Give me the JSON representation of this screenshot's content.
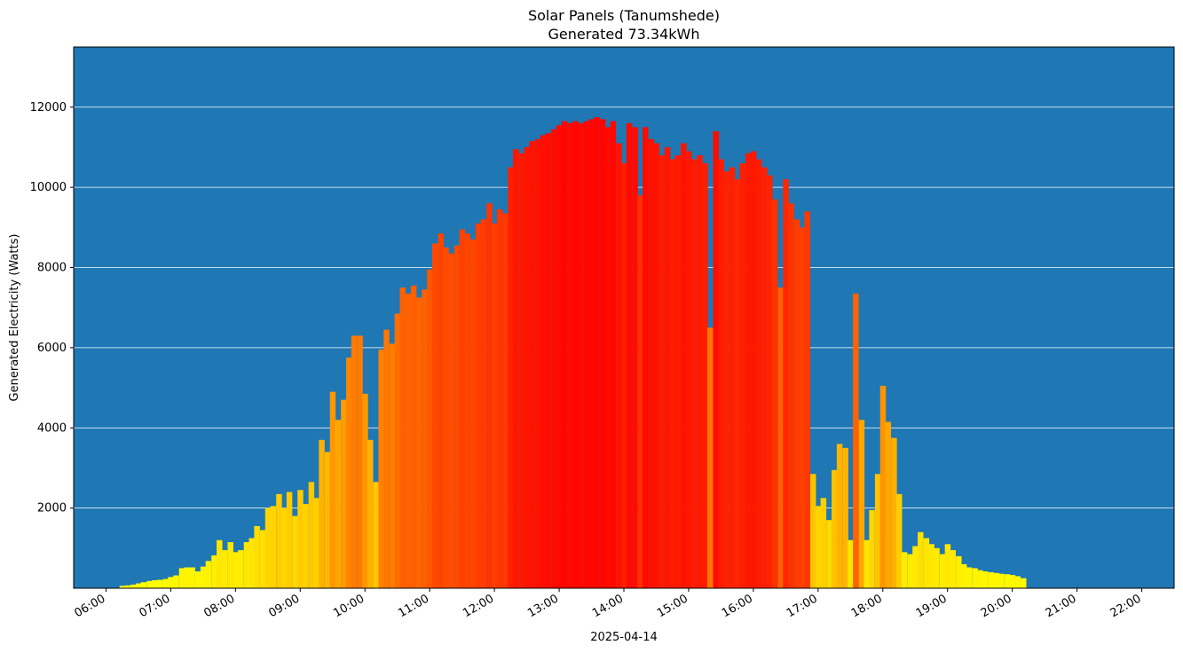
{
  "chart_data": {
    "type": "bar",
    "title": "Solar Panels (Tanumshede)",
    "subtitle": "Generated 73.34kWh",
    "xlabel": "2025-04-14",
    "ylabel": "Generated Electricity (Watts)",
    "background_color": "#1f77b4",
    "grid_color": "#ffffff",
    "grid": "horizontal",
    "xlim_hours": [
      5.5,
      22.5
    ],
    "ylim": [
      0,
      13500
    ],
    "y_ticks": [
      2000,
      4000,
      6000,
      8000,
      10000,
      12000
    ],
    "x_tick_hours": [
      6,
      7,
      8,
      9,
      10,
      11,
      12,
      13,
      14,
      15,
      16,
      17,
      18,
      19,
      20,
      21,
      22
    ],
    "x_tick_labels": [
      "06:00",
      "07:00",
      "08:00",
      "09:00",
      "10:00",
      "11:00",
      "12:00",
      "13:00",
      "14:00",
      "15:00",
      "16:00",
      "17:00",
      "18:00",
      "19:00",
      "20:00",
      "21:00",
      "22:00"
    ],
    "color_scale": {
      "low": "#ffff00",
      "mid": "#ff8000",
      "high": "#ff0000",
      "max_watts": 12000
    },
    "bar_width_hours": 0.0833,
    "series": [
      {
        "name": "Generated Electricity (Watts)",
        "points": [
          [
            6.25,
            60
          ],
          [
            6.33,
            70
          ],
          [
            6.42,
            90
          ],
          [
            6.5,
            120
          ],
          [
            6.58,
            150
          ],
          [
            6.67,
            180
          ],
          [
            6.75,
            200
          ],
          [
            6.83,
            210
          ],
          [
            6.92,
            230
          ],
          [
            7.0,
            280
          ],
          [
            7.08,
            320
          ],
          [
            7.17,
            500
          ],
          [
            7.25,
            520
          ],
          [
            7.33,
            520
          ],
          [
            7.42,
            420
          ],
          [
            7.5,
            540
          ],
          [
            7.58,
            680
          ],
          [
            7.67,
            820
          ],
          [
            7.75,
            1200
          ],
          [
            7.83,
            950
          ],
          [
            7.92,
            1150
          ],
          [
            8.0,
            900
          ],
          [
            8.08,
            950
          ],
          [
            8.17,
            1150
          ],
          [
            8.25,
            1250
          ],
          [
            8.33,
            1550
          ],
          [
            8.42,
            1450
          ],
          [
            8.5,
            2000
          ],
          [
            8.58,
            2050
          ],
          [
            8.67,
            2350
          ],
          [
            8.75,
            2000
          ],
          [
            8.83,
            2400
          ],
          [
            8.92,
            1800
          ],
          [
            9.0,
            2450
          ],
          [
            9.08,
            2100
          ],
          [
            9.17,
            2650
          ],
          [
            9.25,
            2250
          ],
          [
            9.33,
            3700
          ],
          [
            9.42,
            3400
          ],
          [
            9.5,
            4900
          ],
          [
            9.58,
            4200
          ],
          [
            9.67,
            4700
          ],
          [
            9.75,
            5750
          ],
          [
            9.83,
            6300
          ],
          [
            9.92,
            6300
          ],
          [
            10.0,
            4850
          ],
          [
            10.08,
            3700
          ],
          [
            10.17,
            2650
          ],
          [
            10.25,
            5950
          ],
          [
            10.33,
            6450
          ],
          [
            10.42,
            6100
          ],
          [
            10.5,
            6850
          ],
          [
            10.58,
            7500
          ],
          [
            10.67,
            7350
          ],
          [
            10.75,
            7550
          ],
          [
            10.83,
            7250
          ],
          [
            10.92,
            7450
          ],
          [
            11.0,
            7950
          ],
          [
            11.08,
            8600
          ],
          [
            11.17,
            8850
          ],
          [
            11.25,
            8500
          ],
          [
            11.33,
            8350
          ],
          [
            11.42,
            8550
          ],
          [
            11.5,
            8950
          ],
          [
            11.58,
            8850
          ],
          [
            11.67,
            8700
          ],
          [
            11.75,
            9100
          ],
          [
            11.83,
            9200
          ],
          [
            11.92,
            9600
          ],
          [
            12.0,
            9100
          ],
          [
            12.08,
            9450
          ],
          [
            12.17,
            9350
          ],
          [
            12.25,
            10500
          ],
          [
            12.33,
            10950
          ],
          [
            12.42,
            10850
          ],
          [
            12.5,
            11000
          ],
          [
            12.58,
            11150
          ],
          [
            12.67,
            11200
          ],
          [
            12.75,
            11300
          ],
          [
            12.83,
            11350
          ],
          [
            12.92,
            11450
          ],
          [
            13.0,
            11550
          ],
          [
            13.08,
            11650
          ],
          [
            13.17,
            11600
          ],
          [
            13.25,
            11650
          ],
          [
            13.33,
            11600
          ],
          [
            13.42,
            11650
          ],
          [
            13.5,
            11700
          ],
          [
            13.58,
            11750
          ],
          [
            13.67,
            11700
          ],
          [
            13.75,
            11500
          ],
          [
            13.83,
            11650
          ],
          [
            13.92,
            11100
          ],
          [
            14.0,
            10600
          ],
          [
            14.08,
            11600
          ],
          [
            14.17,
            11500
          ],
          [
            14.25,
            9800
          ],
          [
            14.33,
            11500
          ],
          [
            14.42,
            11200
          ],
          [
            14.5,
            11100
          ],
          [
            14.58,
            10800
          ],
          [
            14.67,
            11000
          ],
          [
            14.75,
            10700
          ],
          [
            14.83,
            10800
          ],
          [
            14.92,
            11100
          ],
          [
            15.0,
            10900
          ],
          [
            15.08,
            10700
          ],
          [
            15.17,
            10800
          ],
          [
            15.25,
            10600
          ],
          [
            15.33,
            6500
          ],
          [
            15.42,
            11400
          ],
          [
            15.5,
            10700
          ],
          [
            15.58,
            10400
          ],
          [
            15.67,
            10500
          ],
          [
            15.75,
            10200
          ],
          [
            15.83,
            10600
          ],
          [
            15.92,
            10850
          ],
          [
            16.0,
            10900
          ],
          [
            16.08,
            10700
          ],
          [
            16.17,
            10500
          ],
          [
            16.25,
            10300
          ],
          [
            16.33,
            9700
          ],
          [
            16.42,
            7500
          ],
          [
            16.5,
            10200
          ],
          [
            16.58,
            9600
          ],
          [
            16.67,
            9200
          ],
          [
            16.75,
            9000
          ],
          [
            16.83,
            9400
          ],
          [
            16.92,
            2850
          ],
          [
            17.0,
            2050
          ],
          [
            17.08,
            2250
          ],
          [
            17.17,
            1700
          ],
          [
            17.25,
            2950
          ],
          [
            17.33,
            3600
          ],
          [
            17.42,
            3500
          ],
          [
            17.5,
            1200
          ],
          [
            17.58,
            7350
          ],
          [
            17.67,
            4200
          ],
          [
            17.75,
            1200
          ],
          [
            17.83,
            1950
          ],
          [
            17.92,
            2850
          ],
          [
            18.0,
            5050
          ],
          [
            18.08,
            4150
          ],
          [
            18.17,
            3750
          ],
          [
            18.25,
            2350
          ],
          [
            18.33,
            900
          ],
          [
            18.42,
            850
          ],
          [
            18.5,
            1050
          ],
          [
            18.58,
            1400
          ],
          [
            18.67,
            1250
          ],
          [
            18.75,
            1100
          ],
          [
            18.83,
            1000
          ],
          [
            18.92,
            850
          ],
          [
            19.0,
            1100
          ],
          [
            19.08,
            950
          ],
          [
            19.17,
            800
          ],
          [
            19.25,
            600
          ],
          [
            19.33,
            520
          ],
          [
            19.42,
            500
          ],
          [
            19.5,
            450
          ],
          [
            19.58,
            420
          ],
          [
            19.67,
            400
          ],
          [
            19.75,
            380
          ],
          [
            19.83,
            360
          ],
          [
            19.92,
            350
          ],
          [
            20.0,
            330
          ],
          [
            20.08,
            300
          ],
          [
            20.17,
            250
          ]
        ]
      }
    ]
  }
}
